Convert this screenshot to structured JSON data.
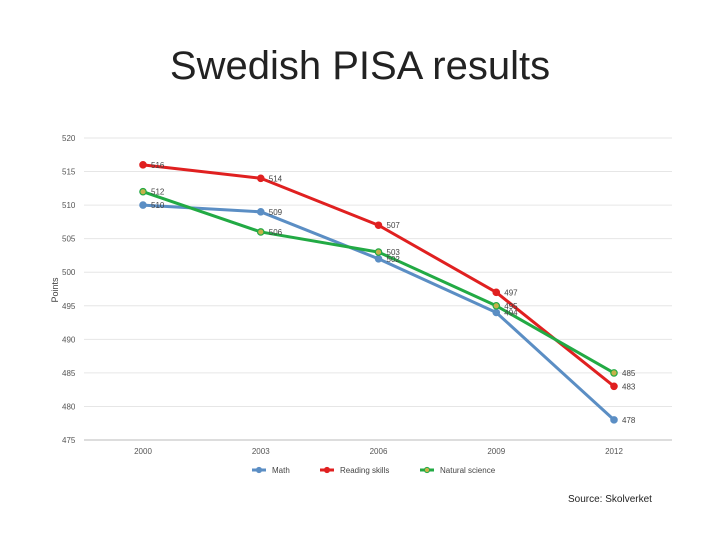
{
  "title": "Swedish PISA results",
  "source": "Source: Skolverket",
  "chart_data": {
    "type": "line",
    "title": "Swedish PISA results",
    "xlabel": "",
    "ylabel": "Points",
    "categories": [
      "2000",
      "2003",
      "2006",
      "2009",
      "2012"
    ],
    "ylim": [
      475,
      520
    ],
    "yticks": [
      520,
      515,
      510,
      505,
      500,
      495,
      490,
      485,
      480,
      475
    ],
    "grid": true,
    "legend_position": "bottom",
    "series": [
      {
        "name": "Math",
        "color": "#5b8ec4",
        "values": [
          510,
          509,
          502,
          494,
          478
        ]
      },
      {
        "name": "Reading skills",
        "color": "#e02020",
        "values": [
          516,
          514,
          507,
          497,
          483
        ]
      },
      {
        "name": "Natural science",
        "color": "#22aa44",
        "marker_fill": "#c5b24a",
        "values": [
          512,
          506,
          503,
          495,
          485
        ]
      }
    ]
  }
}
